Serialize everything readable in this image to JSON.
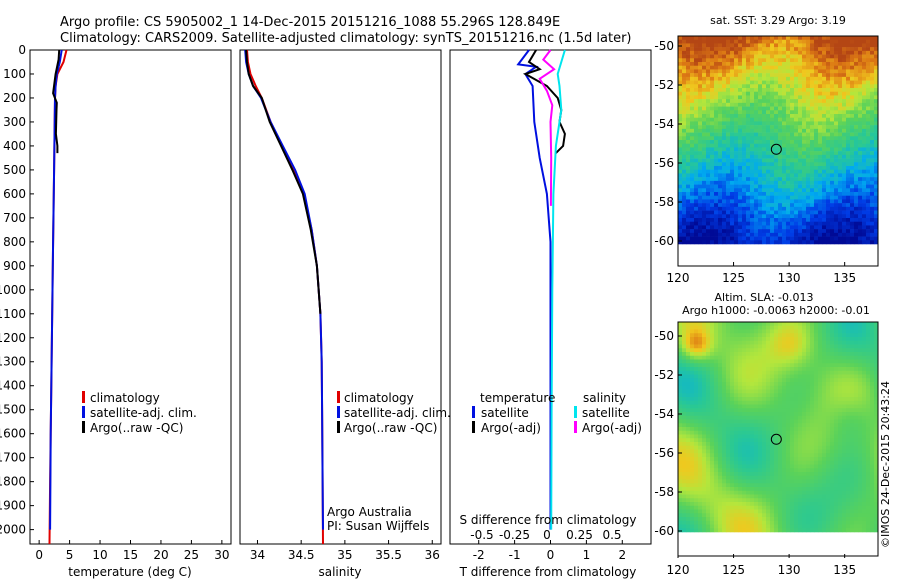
{
  "header": {
    "line1": "Argo profile: CS 5905002_1 14-Dec-2015 20151216_1088 55.296S 128.849E",
    "line2": "Climatology: CARS2009. Satellite-adjusted climatology: synTS_20151216.nc (1.5d later)"
  },
  "colors": {
    "climatology": "#e00000",
    "satellite": "#0010e0",
    "argo": "#000000",
    "satellite_salinity": "#00e5ee",
    "argo_salinity_adj": "#ff00ff"
  },
  "depth_ticks": [
    "0",
    "100",
    "200",
    "300",
    "400",
    "500",
    "600",
    "700",
    "800",
    "900",
    "1000",
    "1100",
    "1200",
    "1300",
    "1400",
    "1500",
    "1600",
    "1700",
    "1800",
    "1900",
    "2000"
  ],
  "depth_range": [
    0,
    2060
  ],
  "panels": {
    "temperature": {
      "xlabel": "temperature (deg C)",
      "xticks": [
        "0",
        "5",
        "10",
        "15",
        "20",
        "25",
        "30"
      ],
      "xlim": [
        -1.5,
        31.5
      ],
      "legend": [
        "climatology",
        "satellite-adj. clim.",
        "Argo(..raw -QC)"
      ]
    },
    "salinity": {
      "xlabel": "salinity",
      "xticks": [
        "34",
        "34.5",
        "35",
        "35.5",
        "36"
      ],
      "xlim": [
        33.8,
        36.1
      ],
      "legend": [
        "climatology",
        "satellite-adj. clim.",
        "Argo(..raw -QC)"
      ],
      "note1": "Argo Australia",
      "note2": "PI: Susan Wijffels"
    },
    "difference": {
      "xlabel": "T difference from climatology",
      "xticks": [
        "-2",
        "-1",
        "0",
        "1",
        "2"
      ],
      "xlim": [
        -2.8,
        2.8
      ],
      "top_label": "S difference from climatology",
      "top_ticks": [
        "-0.5",
        "-0.25",
        "0",
        "0.25",
        "0.5"
      ],
      "legend_temp_title": "temperature",
      "legend_temp": [
        "satellite",
        "Argo(-adj)"
      ],
      "legend_sal_title": "salinity",
      "legend_sal": [
        "satellite",
        "Argo(-adj)"
      ]
    }
  },
  "maps": {
    "sst_title": "sat. SST: 3.29 Argo: 3.19",
    "sla_title1": "Altim. SLA: -0.013",
    "sla_title2": "Argo h1000: -0.0063 h2000: -0.01",
    "lat_ticks": [
      "-50",
      "-52",
      "-54",
      "-56",
      "-58",
      "-60"
    ],
    "lon_ticks": [
      "120",
      "125",
      "130",
      "135"
    ],
    "float_lon": 128.849,
    "float_lat": -55.296
  },
  "credit": "©IMOS 24-Dec-2015 20:43:24",
  "chart_data": [
    {
      "type": "line",
      "title": "",
      "xlabel": "temperature (deg C)",
      "ylabel": "",
      "xlim": [
        -1.5,
        31.5
      ],
      "ylim": [
        2060,
        0
      ],
      "series": [
        {
          "name": "climatology",
          "color": "#e00000",
          "x": [
            4.5,
            4.0,
            3.0,
            2.7,
            2.6,
            2.55,
            2.45,
            2.3,
            2.2,
            2.1,
            2.0,
            1.9,
            1.8,
            1.7
          ],
          "y": [
            0,
            50,
            100,
            150,
            200,
            300,
            500,
            800,
            1000,
            1200,
            1400,
            1600,
            1800,
            2060
          ]
        },
        {
          "name": "satellite-adj. clim.",
          "color": "#0010e0",
          "x": [
            3.7,
            3.4,
            2.9,
            2.7,
            2.6,
            2.55,
            2.45,
            2.3,
            2.2,
            2.1,
            2.0,
            1.9,
            1.85,
            1.8
          ],
          "y": [
            0,
            50,
            100,
            150,
            200,
            300,
            500,
            800,
            1000,
            1200,
            1400,
            1600,
            1800,
            2000
          ]
        },
        {
          "name": "Argo(..raw -QC)",
          "color": "#000000",
          "x": [
            3.3,
            3.2,
            2.7,
            2.3,
            2.9,
            2.85,
            2.8,
            2.75,
            3.0,
            3.0
          ],
          "y": [
            0,
            40,
            100,
            180,
            220,
            250,
            300,
            350,
            400,
            430
          ]
        }
      ]
    },
    {
      "type": "line",
      "title": "",
      "xlabel": "salinity",
      "ylabel": "",
      "xlim": [
        33.8,
        36.1
      ],
      "ylim": [
        2060,
        0
      ],
      "series": [
        {
          "name": "climatology",
          "color": "#e00000",
          "x": [
            33.88,
            33.89,
            33.92,
            33.98,
            34.05,
            34.15,
            34.28,
            34.42,
            34.53,
            34.62,
            34.68,
            34.72,
            34.735,
            34.74,
            34.745,
            34.75
          ],
          "y": [
            0,
            50,
            100,
            150,
            200,
            300,
            400,
            500,
            600,
            750,
            900,
            1100,
            1300,
            1500,
            1800,
            2060
          ]
        },
        {
          "name": "satellite-adj. clim.",
          "color": "#0010e0",
          "x": [
            33.86,
            33.87,
            33.9,
            33.95,
            34.04,
            34.15,
            34.29,
            34.43,
            34.54,
            34.62,
            34.68,
            34.72,
            34.735,
            34.74,
            34.745,
            34.75
          ],
          "y": [
            0,
            50,
            100,
            150,
            200,
            300,
            400,
            500,
            600,
            750,
            900,
            1100,
            1300,
            1500,
            1800,
            2000
          ]
        },
        {
          "name": "Argo(..raw -QC)",
          "color": "#000000",
          "x": [
            33.87,
            33.88,
            33.9,
            33.95,
            34.05,
            34.14,
            34.27,
            34.4,
            34.52,
            34.61,
            34.68,
            34.72
          ],
          "y": [
            0,
            50,
            100,
            150,
            200,
            300,
            400,
            500,
            600,
            750,
            900,
            1100
          ]
        }
      ]
    },
    {
      "type": "line",
      "title": "",
      "xlabel": "T difference from climatology",
      "ylabel": "",
      "xlim": [
        -2.8,
        2.8
      ],
      "ylim": [
        2060,
        0
      ],
      "series": [
        {
          "name": "satellite",
          "color": "#0010e0",
          "x": [
            -0.6,
            -0.9,
            -0.4,
            -0.7,
            -0.5,
            -0.45,
            -0.3,
            -0.1,
            0.0,
            0.0,
            0.0,
            0.0
          ],
          "y": [
            0,
            60,
            70,
            100,
            150,
            300,
            450,
            600,
            800,
            1000,
            1500,
            2000
          ]
        },
        {
          "name": "Argo(-adj)",
          "color": "#000000",
          "x": [
            -0.4,
            -0.6,
            -0.3,
            -0.7,
            -0.1,
            0.2,
            0.3,
            0.25,
            0.4,
            0.35,
            0.15
          ],
          "y": [
            0,
            50,
            80,
            100,
            150,
            200,
            250,
            300,
            350,
            400,
            430
          ]
        },
        {
          "name": "salinity satellite",
          "color": "#00e5ee",
          "x": [
            0.4,
            0.3,
            0.2,
            0.25,
            0.3,
            0.15,
            0.08,
            0.05,
            0.03,
            0.02
          ],
          "y": [
            0,
            50,
            100,
            150,
            250,
            400,
            600,
            1000,
            1500,
            2000
          ]
        },
        {
          "name": "salinity Argo(-adj)",
          "color": "#ff00ff",
          "x": [
            0.0,
            -0.2,
            0.1,
            -0.3,
            -0.1,
            0.05,
            0.0,
            0.02,
            0.01
          ],
          "y": [
            0,
            40,
            80,
            120,
            170,
            230,
            300,
            450,
            650
          ]
        }
      ]
    }
  ]
}
